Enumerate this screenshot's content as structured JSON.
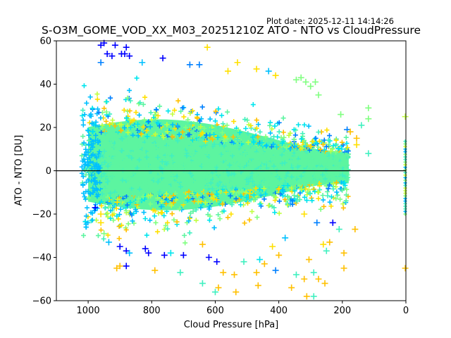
{
  "header": {
    "plot_date": "Plot date: 2025-12-11 14:14:26"
  },
  "chart_data": {
    "type": "scatter",
    "title": "S-O3M_GOME_VOD_XX_M03_20251210Z ATO - NTO vs CloudPressure",
    "xlabel": "Cloud Pressure [hPa]",
    "ylabel": "ATO - NTO [DU]",
    "xlim": [
      1100,
      0
    ],
    "ylim": [
      -60,
      60
    ],
    "x_inverted": true,
    "xticks": [
      1000,
      800,
      600,
      400,
      200,
      0
    ],
    "xtick_labels": [
      "1000",
      "800",
      "600",
      "400",
      "200",
      "0"
    ],
    "yticks": [
      60,
      40,
      20,
      0,
      -20,
      -40,
      -60
    ],
    "ytick_labels": [
      "60",
      "40",
      "20",
      "0",
      "−20",
      "−40",
      "−60"
    ],
    "reference_line": {
      "y": 0,
      "color": "#000000"
    },
    "marker": "+",
    "grid": false,
    "legend": "none",
    "colormap": [
      "#0000ff",
      "#0080ff",
      "#00c0ff",
      "#00e5ee",
      "#40f0c0",
      "#5cf5a0",
      "#80ff80",
      "#c0ff40",
      "#ffe000",
      "#ffc000",
      "#ffb000"
    ],
    "density_core": {
      "description": "dense band of thousands of points",
      "x_range": [
        1000,
        180
      ],
      "y_center": 2,
      "y_spread_high_pressure": [
        -25,
        28
      ],
      "y_spread_low_pressure": [
        -12,
        10
      ],
      "dominant_color": "#5cf5a0"
    },
    "points": [
      {
        "x": 960,
        "y": 58,
        "c": "#0000ff"
      },
      {
        "x": 950,
        "y": 59,
        "c": "#0000ff"
      },
      {
        "x": 915,
        "y": 58,
        "c": "#0000ff"
      },
      {
        "x": 880,
        "y": 57,
        "c": "#0000ff"
      },
      {
        "x": 940,
        "y": 54,
        "c": "#0000ff"
      },
      {
        "x": 925,
        "y": 53,
        "c": "#0000ff"
      },
      {
        "x": 895,
        "y": 54,
        "c": "#0000ff"
      },
      {
        "x": 885,
        "y": 54,
        "c": "#0000ff"
      },
      {
        "x": 870,
        "y": 53,
        "c": "#0000ff"
      },
      {
        "x": 765,
        "y": 52,
        "c": "#0000ff"
      },
      {
        "x": 960,
        "y": 50,
        "c": "#0080ff"
      },
      {
        "x": 830,
        "y": 50,
        "c": "#00c0ff"
      },
      {
        "x": 680,
        "y": 49,
        "c": "#0080ff"
      },
      {
        "x": 650,
        "y": 49,
        "c": "#0080ff"
      },
      {
        "x": 625,
        "y": 57,
        "c": "#ffe000"
      },
      {
        "x": 530,
        "y": 50,
        "c": "#ffe000"
      },
      {
        "x": 560,
        "y": 46,
        "c": "#ffe000"
      },
      {
        "x": 470,
        "y": 47,
        "c": "#ffe000"
      },
      {
        "x": 432,
        "y": 46,
        "c": "#00c0ff"
      },
      {
        "x": 410,
        "y": 44,
        "c": "#ffe000"
      },
      {
        "x": 345,
        "y": 42,
        "c": "#80ff80"
      },
      {
        "x": 330,
        "y": 43,
        "c": "#80ff80"
      },
      {
        "x": 315,
        "y": 41,
        "c": "#80ff80"
      },
      {
        "x": 300,
        "y": 39,
        "c": "#80ff80"
      },
      {
        "x": 285,
        "y": 41,
        "c": "#80ff80"
      },
      {
        "x": 275,
        "y": 35,
        "c": "#80ff80"
      },
      {
        "x": 205,
        "y": 26,
        "c": "#80ff80"
      },
      {
        "x": 185,
        "y": 19,
        "c": "#0080ff"
      },
      {
        "x": 175,
        "y": 18,
        "c": "#ffc000"
      },
      {
        "x": 155,
        "y": 15,
        "c": "#ffc000"
      },
      {
        "x": 140,
        "y": 21,
        "c": "#40f0c0"
      },
      {
        "x": 118,
        "y": 29,
        "c": "#80ff80"
      },
      {
        "x": 118,
        "y": 24,
        "c": "#80ff80"
      },
      {
        "x": 118,
        "y": 8,
        "c": "#40f0c0"
      },
      {
        "x": 155,
        "y": 12,
        "c": "#ffe000"
      },
      {
        "x": 2,
        "y": 25,
        "c": "#c0ff40"
      },
      {
        "x": 978,
        "y": -17,
        "c": "#0000ff"
      },
      {
        "x": 960,
        "y": -20,
        "c": "#ffe000"
      },
      {
        "x": 960,
        "y": -24,
        "c": "#ffe000"
      },
      {
        "x": 950,
        "y": -29,
        "c": "#80ff80"
      },
      {
        "x": 935,
        "y": -33,
        "c": "#00c0ff"
      },
      {
        "x": 900,
        "y": -35,
        "c": "#0000ff"
      },
      {
        "x": 880,
        "y": -37,
        "c": "#0000ff"
      },
      {
        "x": 870,
        "y": -38,
        "c": "#00c0ff"
      },
      {
        "x": 820,
        "y": -36,
        "c": "#0000ff"
      },
      {
        "x": 810,
        "y": -38,
        "c": "#0000ff"
      },
      {
        "x": 880,
        "y": -44,
        "c": "#0000ff"
      },
      {
        "x": 900,
        "y": -44,
        "c": "#ffc000"
      },
      {
        "x": 910,
        "y": -45,
        "c": "#ffc000"
      },
      {
        "x": 790,
        "y": -46,
        "c": "#ffc000"
      },
      {
        "x": 760,
        "y": -39,
        "c": "#0000ff"
      },
      {
        "x": 740,
        "y": -38,
        "c": "#00e5ee"
      },
      {
        "x": 700,
        "y": -39,
        "c": "#0000ff"
      },
      {
        "x": 710,
        "y": -47,
        "c": "#40f0c0"
      },
      {
        "x": 640,
        "y": -34,
        "c": "#ffc000"
      },
      {
        "x": 620,
        "y": -40,
        "c": "#0000ff"
      },
      {
        "x": 595,
        "y": -42,
        "c": "#0000ff"
      },
      {
        "x": 575,
        "y": -47,
        "c": "#ffc000"
      },
      {
        "x": 640,
        "y": -52,
        "c": "#40f0c0"
      },
      {
        "x": 590,
        "y": -54,
        "c": "#ffc000"
      },
      {
        "x": 535,
        "y": -56,
        "c": "#ffc000"
      },
      {
        "x": 600,
        "y": -56,
        "c": "#40f0c0"
      },
      {
        "x": 540,
        "y": -48,
        "c": "#ffc000"
      },
      {
        "x": 510,
        "y": -42,
        "c": "#40f0c0"
      },
      {
        "x": 460,
        "y": -41,
        "c": "#00e5ee"
      },
      {
        "x": 445,
        "y": -43,
        "c": "#ffc000"
      },
      {
        "x": 465,
        "y": -53,
        "c": "#ffc000"
      },
      {
        "x": 470,
        "y": -47,
        "c": "#ffc000"
      },
      {
        "x": 410,
        "y": -46,
        "c": "#0080ff"
      },
      {
        "x": 360,
        "y": -54,
        "c": "#ffc000"
      },
      {
        "x": 345,
        "y": -48,
        "c": "#40f0c0"
      },
      {
        "x": 320,
        "y": -50,
        "c": "#ffc000"
      },
      {
        "x": 312,
        "y": -58,
        "c": "#ffc000"
      },
      {
        "x": 290,
        "y": -58,
        "c": "#40f0c0"
      },
      {
        "x": 290,
        "y": -47,
        "c": "#40f0c0"
      },
      {
        "x": 275,
        "y": -50,
        "c": "#ffc000"
      },
      {
        "x": 255,
        "y": -52,
        "c": "#ffc000"
      },
      {
        "x": 305,
        "y": -41,
        "c": "#ffc000"
      },
      {
        "x": 260,
        "y": -34,
        "c": "#ffe000"
      },
      {
        "x": 250,
        "y": -37,
        "c": "#40f0c0"
      },
      {
        "x": 240,
        "y": -33,
        "c": "#ffc000"
      },
      {
        "x": 210,
        "y": -27,
        "c": "#40f0c0"
      },
      {
        "x": 195,
        "y": -45,
        "c": "#ffc000"
      },
      {
        "x": 195,
        "y": -38,
        "c": "#ffc000"
      },
      {
        "x": 160,
        "y": -27,
        "c": "#ffc000"
      },
      {
        "x": 280,
        "y": -24,
        "c": "#0080ff"
      },
      {
        "x": 230,
        "y": -24,
        "c": "#0000ff"
      },
      {
        "x": 2,
        "y": -45,
        "c": "#ffc000"
      },
      {
        "x": 320,
        "y": -20,
        "c": "#ffe000"
      },
      {
        "x": 380,
        "y": -31,
        "c": "#00c0ff"
      },
      {
        "x": 420,
        "y": -35,
        "c": "#ffe000"
      },
      {
        "x": 400,
        "y": -39,
        "c": "#ffc000"
      }
    ],
    "edge_points_at_zero_pressure": {
      "x": 0,
      "y_range": [
        -20,
        14
      ]
    }
  }
}
